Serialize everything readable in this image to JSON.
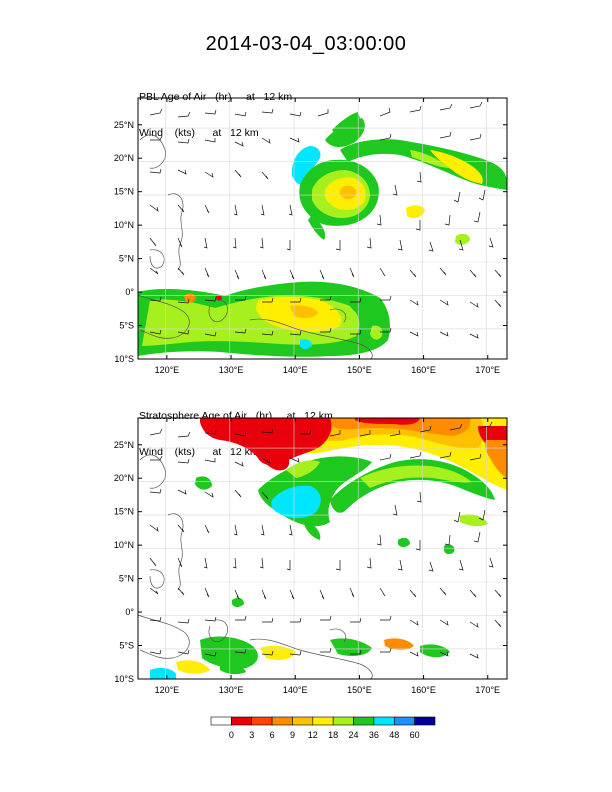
{
  "title": "2014-03-04_03:00:00",
  "panels": [
    {
      "id": "pbl",
      "line1": "PBL Age of Air   (hr)     at   12 km",
      "line2": "Wind    (kts)      at   12 km"
    },
    {
      "id": "strat",
      "line1": "Stratosphere Age of Air   (hr)     at   12 km",
      "line2": "Wind    (kts)      at   12 km"
    }
  ],
  "axes": {
    "lon_labels": [
      "120°E",
      "130°E",
      "140°E",
      "150°E",
      "160°E",
      "170°E"
    ],
    "lon_values": [
      120,
      130,
      140,
      150,
      160,
      170
    ],
    "lat_labels": [
      "25°N",
      "20°N",
      "15°N",
      "10°N",
      "5°N",
      "0°",
      "5°S",
      "10°S"
    ],
    "lat_values": [
      25,
      20,
      15,
      10,
      5,
      0,
      -5,
      -10
    ],
    "lon_range": [
      115.5,
      173
    ],
    "lat_range": [
      -10,
      29
    ]
  },
  "colorbar": {
    "labels": [
      "0",
      "3",
      "6",
      "9",
      "12",
      "18",
      "24",
      "36",
      "48",
      "60"
    ],
    "colors": [
      "#ffffff",
      "#e8000b",
      "#ff4400",
      "#ff8c00",
      "#ffc000",
      "#ffee00",
      "#a6f01e",
      "#1ec81e",
      "#00e6ff",
      "#1e90ff",
      "#000096"
    ]
  },
  "colors": {
    "red": "#e8000b",
    "orange": "#ff8c00",
    "amber": "#ffc000",
    "yellow": "#ffee00",
    "lime": "#a6f01e",
    "green": "#1ec81e",
    "cyan": "#00e6ff",
    "blue": "#1e90ff"
  }
}
